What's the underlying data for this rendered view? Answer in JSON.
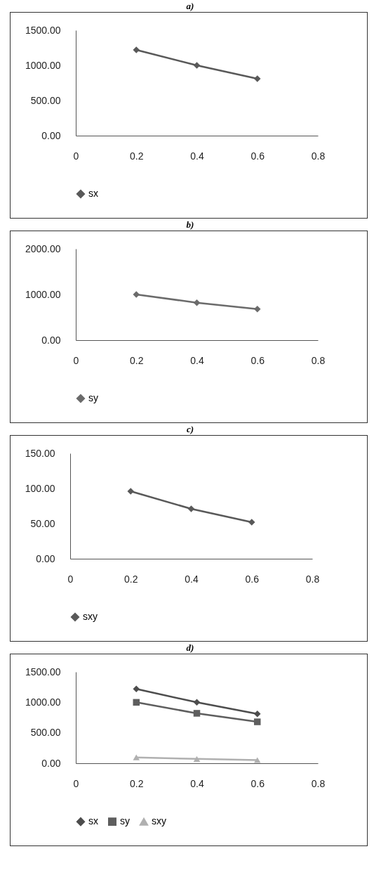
{
  "chart_data": [
    {
      "type": "line",
      "title": "a)",
      "x": [
        0.2,
        0.4,
        0.6
      ],
      "xlim": [
        0,
        0.8
      ],
      "xticks": [
        0,
        0.2,
        0.4,
        0.6,
        0.8
      ],
      "ylim": [
        0,
        1500
      ],
      "yticks": [
        {
          "value": 0,
          "label": "0.00"
        },
        {
          "value": 500,
          "label": "500.00"
        },
        {
          "value": 1000,
          "label": "1000.00"
        },
        {
          "value": 1500,
          "label": "1500.00"
        }
      ],
      "legend": "bottom",
      "marker": "diamond",
      "series": [
        {
          "name": "sx",
          "color": "#595959",
          "values": [
            1220,
            1000,
            810
          ]
        }
      ]
    },
    {
      "type": "line",
      "title": "b)",
      "x": [
        0.2,
        0.4,
        0.6
      ],
      "xlim": [
        0,
        0.8
      ],
      "xticks": [
        0,
        0.2,
        0.4,
        0.6,
        0.8
      ],
      "ylim": [
        0,
        2000
      ],
      "yticks": [
        {
          "value": 0,
          "label": "0.00"
        },
        {
          "value": 1000,
          "label": "1000.00"
        },
        {
          "value": 2000,
          "label": "2000.00"
        }
      ],
      "legend": "bottom",
      "marker": "diamond",
      "series": [
        {
          "name": "sy",
          "color": "#6b6b6b",
          "values": [
            1000,
            820,
            680
          ]
        }
      ]
    },
    {
      "type": "line",
      "title": "c)",
      "x": [
        0.2,
        0.4,
        0.6
      ],
      "xlim": [
        0,
        0.8
      ],
      "xticks": [
        0,
        0.2,
        0.4,
        0.6,
        0.8
      ],
      "ylim": [
        0,
        150
      ],
      "yticks": [
        {
          "value": 0,
          "label": "0.00"
        },
        {
          "value": 50,
          "label": "50.00"
        },
        {
          "value": 100,
          "label": "100.00"
        },
        {
          "value": 150,
          "label": "150.00"
        }
      ],
      "legend": "bottom",
      "marker": "diamond",
      "series": [
        {
          "name": "sxy",
          "color": "#595959",
          "values": [
            96,
            71,
            52
          ]
        }
      ]
    },
    {
      "type": "line",
      "title": "d)",
      "x": [
        0.2,
        0.4,
        0.6
      ],
      "xlim": [
        0,
        0.8
      ],
      "xticks": [
        0,
        0.2,
        0.4,
        0.6,
        0.8
      ],
      "ylim": [
        0,
        1500
      ],
      "yticks": [
        {
          "value": 0,
          "label": "0.00"
        },
        {
          "value": 500,
          "label": "500.00"
        },
        {
          "value": 1000,
          "label": "1000.00"
        },
        {
          "value": 1500,
          "label": "1500.00"
        }
      ],
      "legend": "bottom",
      "series": [
        {
          "name": "sx",
          "color": "#4d4d4d",
          "marker": "diamond",
          "values": [
            1220,
            1000,
            810
          ]
        },
        {
          "name": "sy",
          "color": "#5e5e5e",
          "marker": "square",
          "values": [
            1000,
            820,
            680
          ]
        },
        {
          "name": "sxy",
          "color": "#b0b0b0",
          "marker": "triangle",
          "values": [
            96,
            71,
            52
          ]
        }
      ]
    }
  ]
}
